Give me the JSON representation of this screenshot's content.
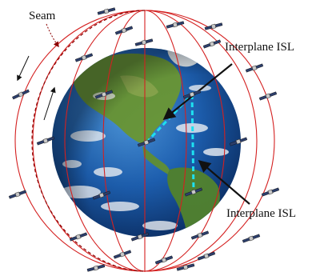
{
  "labels": {
    "seam": "Seam",
    "interplane_isl_top": "Interplane ISL",
    "interplane_isl_bottom": "Interplane ISL"
  },
  "colors": {
    "orbit": "#d42020",
    "seam_orbit": "#8b0000",
    "isl_link": "#1ee0f0",
    "arrow": "#111111",
    "ocean": "#1d5fb0",
    "land": "#5f8f3a"
  },
  "icons": {
    "satellite": "satellite-icon",
    "earth": "earth-globe"
  }
}
